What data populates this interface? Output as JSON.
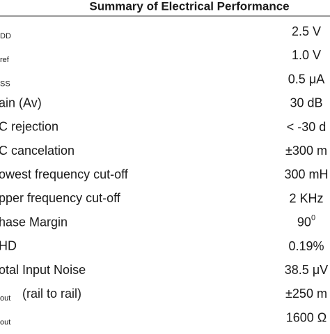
{
  "header": {
    "title": "Summary of Electrical Performance"
  },
  "table": {
    "rows": [
      {
        "sub": "DD",
        "value": "2.5 V"
      },
      {
        "sub": "ref",
        "value": "1.0 V"
      },
      {
        "sub": "SS",
        "value": "0.5 μA"
      },
      {
        "label": "ain (Av)",
        "value": "30 dB"
      },
      {
        "label": "C rejection",
        "value": "< -30 d"
      },
      {
        "label": "C cancelation",
        "value": "±300 m"
      },
      {
        "label": "owest frequency cut-off",
        "value": "300 mH"
      },
      {
        "label": "pper frequency cut-off",
        "value": "2 KHz"
      },
      {
        "label": "hase Margin",
        "value": "90",
        "value_sup": "0"
      },
      {
        "label": "HD",
        "value": "0.19%"
      },
      {
        "label": "otal Input Noise",
        "value": "38.5 μV"
      },
      {
        "sub": "out",
        "label": "(rail to rail)",
        "value": "±250 m"
      },
      {
        "sub": "out",
        "value": "1600 Ω"
      }
    ]
  }
}
